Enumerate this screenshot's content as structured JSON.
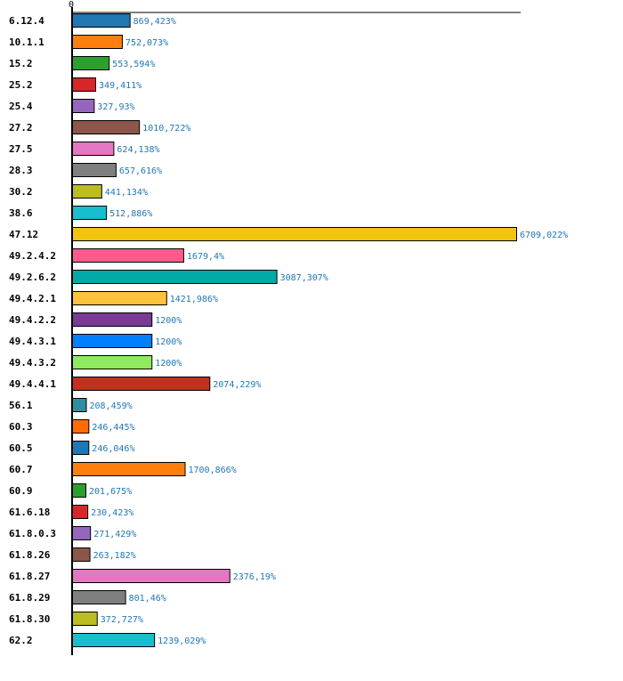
{
  "chart_data": {
    "type": "bar",
    "orientation": "horizontal",
    "title": "",
    "xlabel": "",
    "ylabel": "",
    "xlim": [
      0,
      6760
    ],
    "x_ticks": [
      "0"
    ],
    "value_suffix": "%",
    "grid": false,
    "categories": [
      "6.12.4",
      "10.1.1",
      "15.2",
      "25.2",
      "25.4",
      "27.2",
      "27.5",
      "28.3",
      "30.2",
      "38.6",
      "47.12",
      "49.2.4.2",
      "49.2.6.2",
      "49.4.2.1",
      "49.4.2.2",
      "49.4.3.1",
      "49.4.3.2",
      "49.4.4.1",
      "56.1",
      "60.3",
      "60.5",
      "60.7",
      "60.9",
      "61.6.18",
      "61.8.0.3",
      "61.8.26",
      "61.8.27",
      "61.8.29",
      "61.8.30",
      "62.2"
    ],
    "values": [
      869.423,
      752.073,
      553.594,
      349.411,
      327.93,
      1010.722,
      624.138,
      657.616,
      441.134,
      512.886,
      6709.022,
      1679.4,
      3087.307,
      1421.986,
      1200,
      1200,
      1200,
      2074.229,
      208.459,
      246.445,
      246.046,
      1700.866,
      201.675,
      230.423,
      271.429,
      263.182,
      2376.19,
      801.46,
      372.727,
      1239.029
    ],
    "value_labels": [
      "869,423%",
      "752,073%",
      "553,594%",
      "349,411%",
      "327,93%",
      "1010,722%",
      "624,138%",
      "657,616%",
      "441,134%",
      "512,886%",
      "6709,022%",
      "1679,4%",
      "3087,307%",
      "1421,986%",
      "1200%",
      "1200%",
      "1200%",
      "2074,229%",
      "208,459%",
      "246,445%",
      "246,046%",
      "1700,866%",
      "201,675%",
      "230,423%",
      "271,429%",
      "263,182%",
      "2376,19%",
      "801,46%",
      "372,727%",
      "1239,029%"
    ],
    "colors": [
      "#1f77b4",
      "#ff7f0e",
      "#2ca02c",
      "#d62728",
      "#9467bd",
      "#8c564b",
      "#e377c2",
      "#7f7f7f",
      "#bcbd22",
      "#17becf",
      "#f1c40f",
      "#ff5a8c",
      "#00aaa8",
      "#ffc23b",
      "#7b3a96",
      "#0080ff",
      "#90ea60",
      "#c0301e",
      "#2e8fa0",
      "#ff6d00",
      "#1f77b4",
      "#ff7f0e",
      "#2ca02c",
      "#d62728",
      "#9467bd",
      "#8c564b",
      "#e377c2",
      "#7f7f7f",
      "#bcbd22",
      "#17becf"
    ]
  }
}
